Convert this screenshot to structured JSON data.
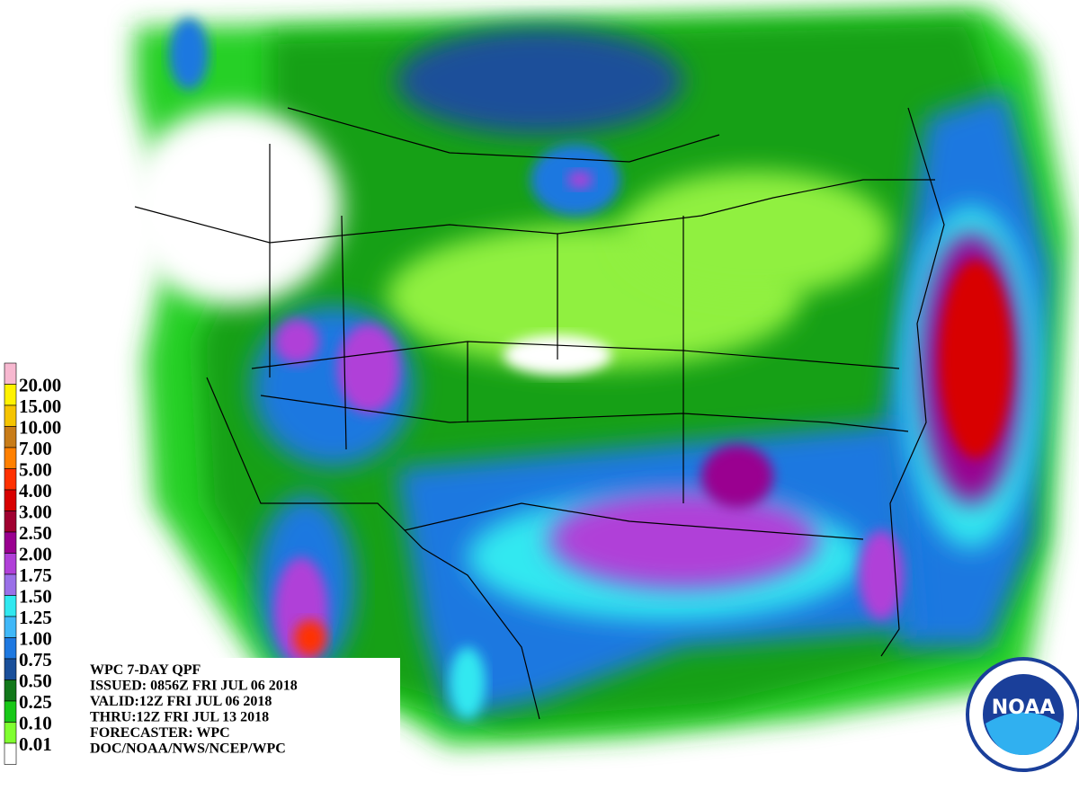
{
  "legend": {
    "labels": [
      "20.00",
      "15.00",
      "10.00",
      "7.00",
      "5.00",
      "4.00",
      "3.00",
      "2.50",
      "2.00",
      "1.75",
      "1.50",
      "1.25",
      "1.00",
      "0.75",
      "0.50",
      "0.25",
      "0.10",
      "0.01"
    ],
    "colors": [
      "#f7b8d0",
      "#fff200",
      "#f5c400",
      "#c87c18",
      "#ff8000",
      "#ff3000",
      "#d80000",
      "#a00030",
      "#9a0090",
      "#b040d8",
      "#9a70e8",
      "#30e8f0",
      "#40b8f8",
      "#1e78e0",
      "#1a4f9a",
      "#12781a",
      "#18c818",
      "#80ff30",
      "#ffffff"
    ]
  },
  "info": [
    "WPC 7-DAY QPF",
    "ISSUED: 0856Z FRI JUL 06 2018",
    "VALID:12Z FRI JUL 06 2018",
    "THRU:12Z FRI JUL 13 2018",
    "FORECASTER: WPC",
    "DOC/NOAA/NWS/NCEP/WPC"
  ],
  "logo": {
    "text": "NOAA"
  }
}
